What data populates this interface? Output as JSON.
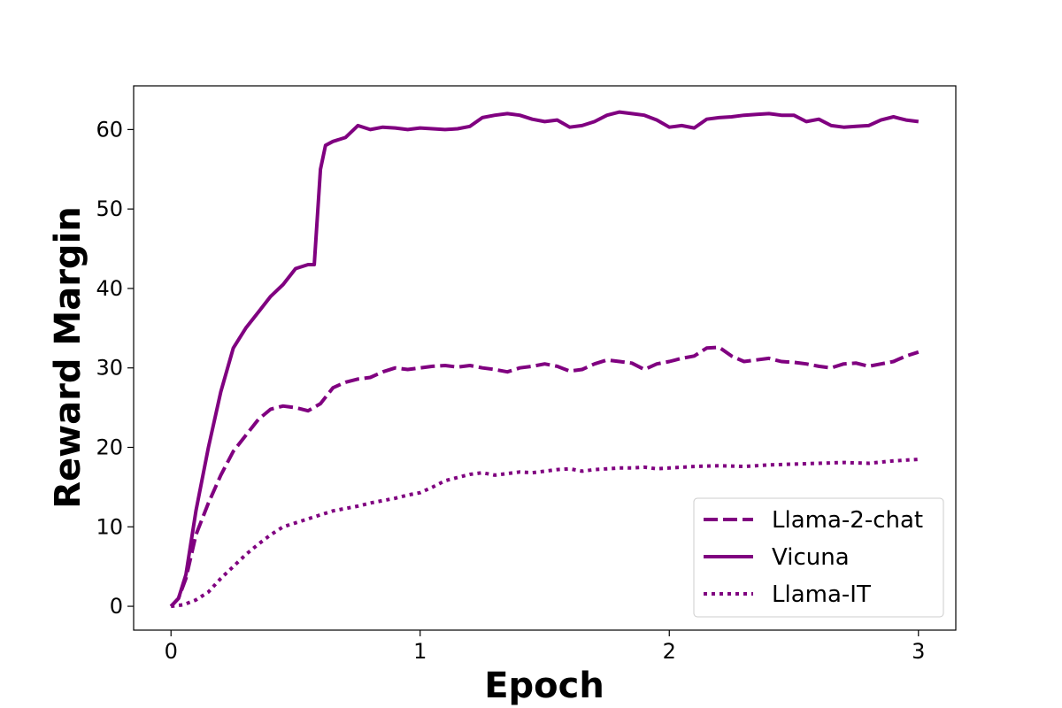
{
  "chart_data": {
    "type": "line",
    "xlabel": "Epoch",
    "ylabel": "Reward Margin",
    "xlim": [
      -0.15,
      3.15
    ],
    "ylim": [
      -3,
      65.5
    ],
    "xticks": [
      0,
      1,
      2,
      3
    ],
    "yticks": [
      0,
      10,
      20,
      30,
      40,
      50,
      60
    ],
    "grid": false,
    "legend_position": "lower-right",
    "color": "#800080",
    "series": [
      {
        "name": "Llama-2-chat",
        "style": "dashed",
        "x": [
          0,
          0.03,
          0.06,
          0.1,
          0.15,
          0.2,
          0.25,
          0.3,
          0.35,
          0.4,
          0.45,
          0.5,
          0.55,
          0.6,
          0.65,
          0.7,
          0.75,
          0.8,
          0.85,
          0.9,
          0.95,
          1.0,
          1.05,
          1.1,
          1.15,
          1.2,
          1.25,
          1.3,
          1.35,
          1.4,
          1.45,
          1.5,
          1.55,
          1.6,
          1.65,
          1.7,
          1.75,
          1.8,
          1.85,
          1.9,
          1.95,
          2.0,
          2.05,
          2.1,
          2.15,
          2.2,
          2.25,
          2.3,
          2.35,
          2.4,
          2.45,
          2.5,
          2.55,
          2.6,
          2.65,
          2.7,
          2.75,
          2.8,
          2.85,
          2.9,
          2.95,
          3.0
        ],
        "y": [
          0,
          1,
          3.5,
          9,
          13,
          16.5,
          19.5,
          21.5,
          23.5,
          24.8,
          25.2,
          25,
          24.6,
          25.5,
          27.5,
          28.2,
          28.6,
          28.8,
          29.5,
          30,
          29.8,
          30,
          30.2,
          30.3,
          30.1,
          30.3,
          30,
          29.8,
          29.5,
          30,
          30.2,
          30.5,
          30.2,
          29.6,
          29.8,
          30.5,
          31,
          30.8,
          30.6,
          29.8,
          30.5,
          30.8,
          31.2,
          31.5,
          32.5,
          32.6,
          31.5,
          30.8,
          31,
          31.2,
          30.8,
          30.7,
          30.5,
          30.2,
          30,
          30.5,
          30.6,
          30.2,
          30.5,
          30.8,
          31.5,
          32
        ]
      },
      {
        "name": "Vicuna",
        "style": "solid",
        "x": [
          0,
          0.03,
          0.06,
          0.1,
          0.15,
          0.2,
          0.25,
          0.3,
          0.35,
          0.4,
          0.45,
          0.5,
          0.55,
          0.575,
          0.6,
          0.62,
          0.65,
          0.7,
          0.75,
          0.8,
          0.85,
          0.9,
          0.95,
          1.0,
          1.05,
          1.1,
          1.15,
          1.2,
          1.25,
          1.3,
          1.35,
          1.4,
          1.45,
          1.5,
          1.55,
          1.6,
          1.65,
          1.7,
          1.75,
          1.8,
          1.85,
          1.9,
          1.95,
          2.0,
          2.05,
          2.1,
          2.15,
          2.2,
          2.25,
          2.3,
          2.35,
          2.4,
          2.45,
          2.5,
          2.55,
          2.6,
          2.65,
          2.7,
          2.75,
          2.8,
          2.85,
          2.9,
          2.95,
          3.0
        ],
        "y": [
          0,
          1,
          4,
          12,
          20,
          27,
          32.5,
          35,
          37,
          39,
          40.5,
          42.5,
          43,
          43,
          55,
          58,
          58.5,
          59,
          60.5,
          60,
          60.3,
          60.2,
          60,
          60.2,
          60.1,
          60,
          60.1,
          60.4,
          61.5,
          61.8,
          62,
          61.8,
          61.3,
          61,
          61.2,
          60.3,
          60.5,
          61,
          61.8,
          62.2,
          62,
          61.8,
          61.2,
          60.3,
          60.5,
          60.2,
          61.3,
          61.5,
          61.6,
          61.8,
          61.9,
          62,
          61.8,
          61.8,
          61,
          61.3,
          60.5,
          60.3,
          60.4,
          60.5,
          61.2,
          61.6,
          61.2,
          61
        ]
      },
      {
        "name": "Llama-IT",
        "style": "dotted",
        "x": [
          0,
          0.05,
          0.1,
          0.15,
          0.2,
          0.25,
          0.3,
          0.35,
          0.4,
          0.45,
          0.5,
          0.55,
          0.6,
          0.65,
          0.7,
          0.75,
          0.8,
          0.85,
          0.9,
          0.95,
          1.0,
          1.05,
          1.1,
          1.15,
          1.2,
          1.25,
          1.3,
          1.35,
          1.4,
          1.45,
          1.5,
          1.55,
          1.6,
          1.65,
          1.7,
          1.75,
          1.8,
          1.85,
          1.9,
          1.95,
          2.0,
          2.1,
          2.2,
          2.3,
          2.4,
          2.5,
          2.6,
          2.7,
          2.8,
          2.9,
          3.0
        ],
        "y": [
          0,
          0.2,
          0.8,
          1.8,
          3.5,
          5,
          6.5,
          7.8,
          9,
          10,
          10.5,
          11,
          11.5,
          12,
          12.3,
          12.6,
          13,
          13.3,
          13.6,
          14,
          14.3,
          15,
          15.8,
          16.2,
          16.6,
          16.8,
          16.5,
          16.7,
          16.9,
          16.8,
          17,
          17.2,
          17.3,
          17,
          17.2,
          17.3,
          17.4,
          17.4,
          17.5,
          17.3,
          17.4,
          17.6,
          17.7,
          17.6,
          17.8,
          17.9,
          18,
          18.1,
          18,
          18.3,
          18.5
        ]
      }
    ]
  }
}
